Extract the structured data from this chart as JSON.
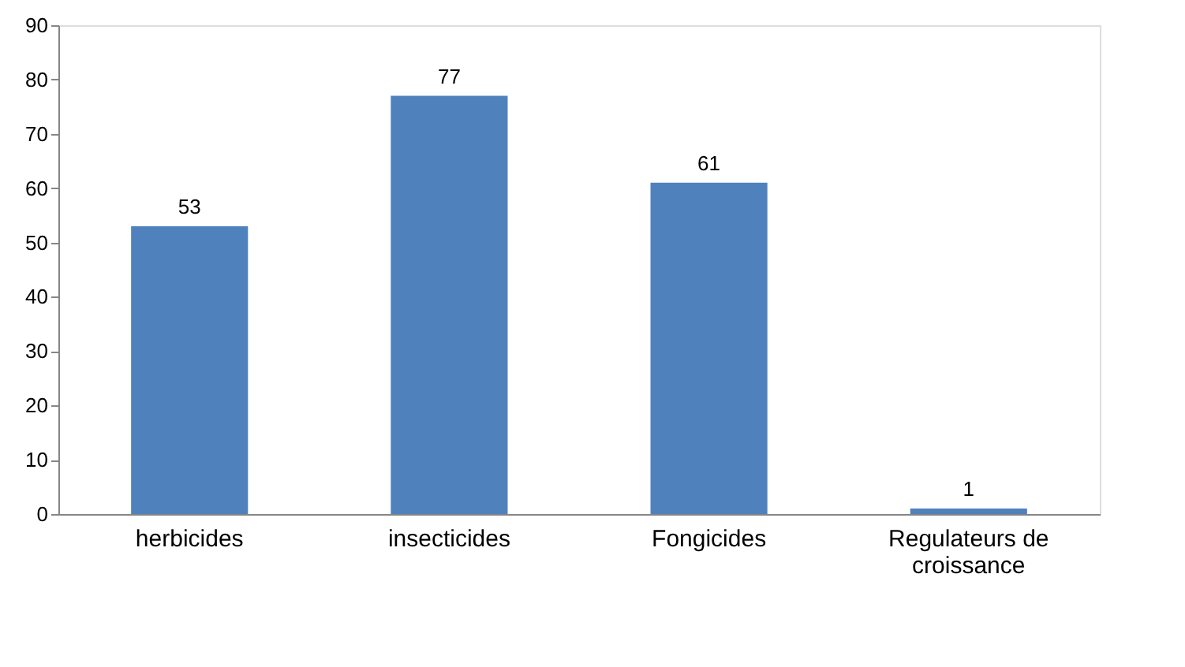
{
  "chart_data": {
    "type": "bar",
    "categories": [
      "herbicides",
      "insecticides",
      "Fongicides",
      "Regulateurs de croissance"
    ],
    "values": [
      53,
      77,
      61,
      1
    ],
    "color": "#4f81bd",
    "ylim": [
      0,
      90
    ],
    "yticks": [
      0,
      10,
      20,
      30,
      40,
      50,
      60,
      70,
      80,
      90
    ],
    "grid": false,
    "data_labels": true
  }
}
